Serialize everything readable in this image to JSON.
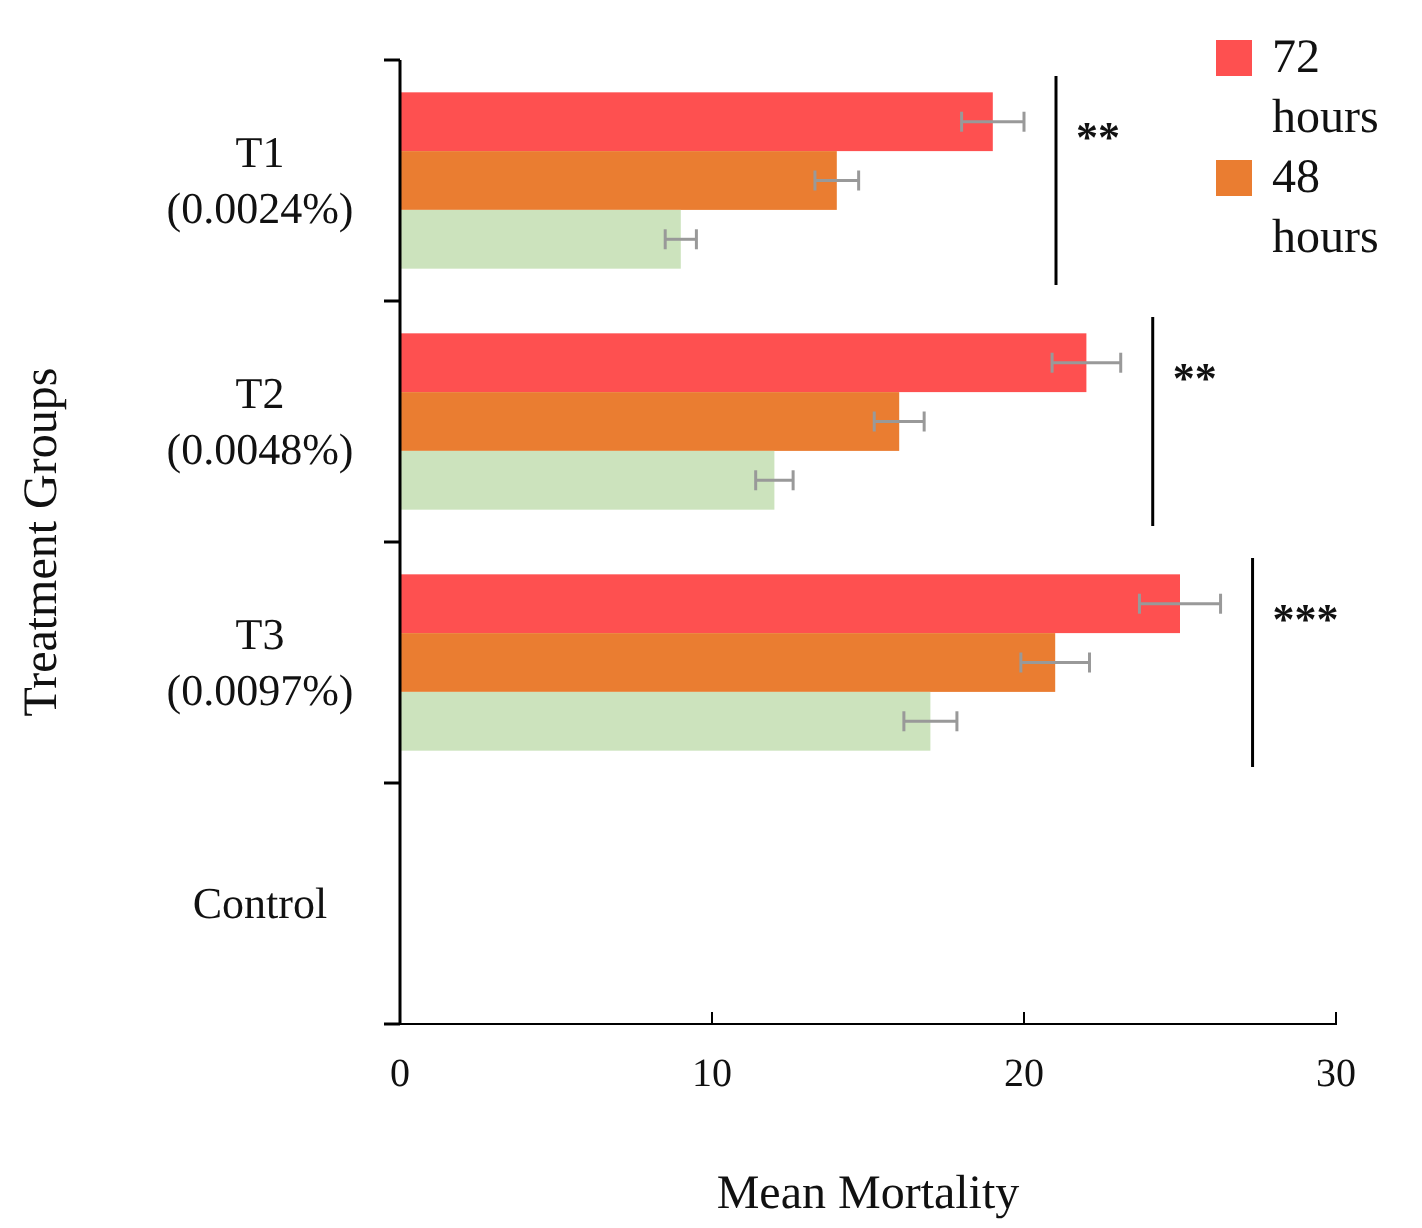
{
  "chart_data": {
    "type": "bar",
    "orientation": "horizontal",
    "xlabel": "Mean Mortality",
    "ylabel": "Treatment Groups",
    "categories": [
      "T1 (0.0024%)",
      "T2 (0.0048%)",
      "T3 (0.0097%)",
      "Control"
    ],
    "series": [
      {
        "name": "72 hours",
        "color": "#fe5050",
        "values": [
          19,
          22,
          25,
          null
        ],
        "errors": [
          1,
          1.1,
          1.3,
          null
        ]
      },
      {
        "name": "48 hours",
        "color": "#ea7d31",
        "values": [
          14,
          16,
          21,
          null
        ],
        "errors": [
          0.7,
          0.8,
          1.1,
          null
        ]
      },
      {
        "color": "#cce3bd",
        "values": [
          9,
          12,
          17,
          null
        ],
        "errors": [
          0.5,
          0.6,
          0.85,
          null
        ]
      }
    ],
    "xlim": [
      0,
      30
    ],
    "xticks": [
      0,
      10,
      20,
      30
    ],
    "grid": false,
    "legend": "top right",
    "annotations": [
      "**",
      "**",
      "***"
    ]
  }
}
